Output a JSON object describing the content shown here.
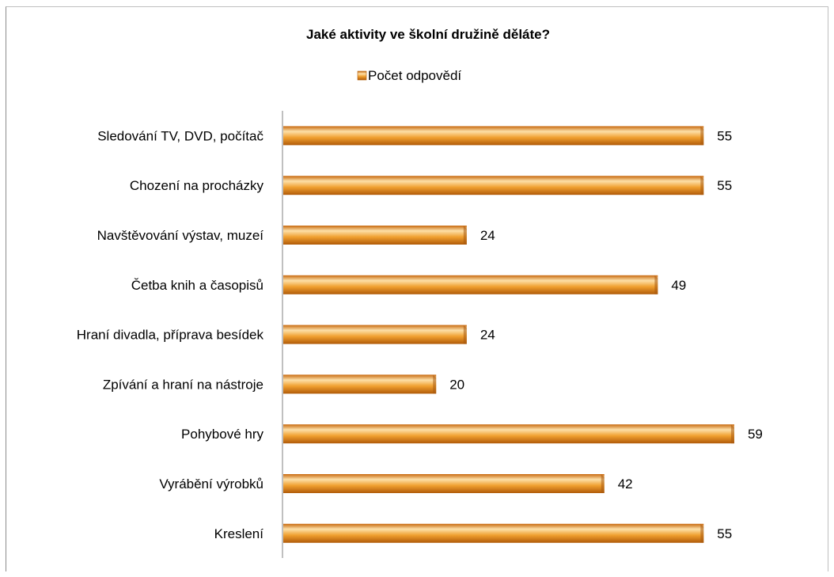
{
  "chart_data": {
    "type": "bar",
    "orientation": "horizontal",
    "title": "Jaké aktivity ve školní družině děláte?",
    "categories": [
      "Sledování TV, DVD, počítač",
      "Chození na procházky",
      "Navštěvování výstav, muzeí",
      "Četba knih a časopisů",
      "Hraní divadla, příprava besídek",
      "Zpívání a hraní na nástroje",
      "Pohybové hry",
      "Vyrábění výrobků",
      "Kreslení"
    ],
    "series": [
      {
        "name": "Počet odpovědí",
        "values": [
          55,
          55,
          24,
          49,
          24,
          20,
          59,
          42,
          55
        ]
      }
    ],
    "xlim": [
      0,
      60
    ],
    "grid": false,
    "legend_position": "top",
    "colors": {
      "bar_fill": "#f0a030",
      "bar_dark": "#c86a10",
      "bar_light": "#fde0a8"
    }
  }
}
